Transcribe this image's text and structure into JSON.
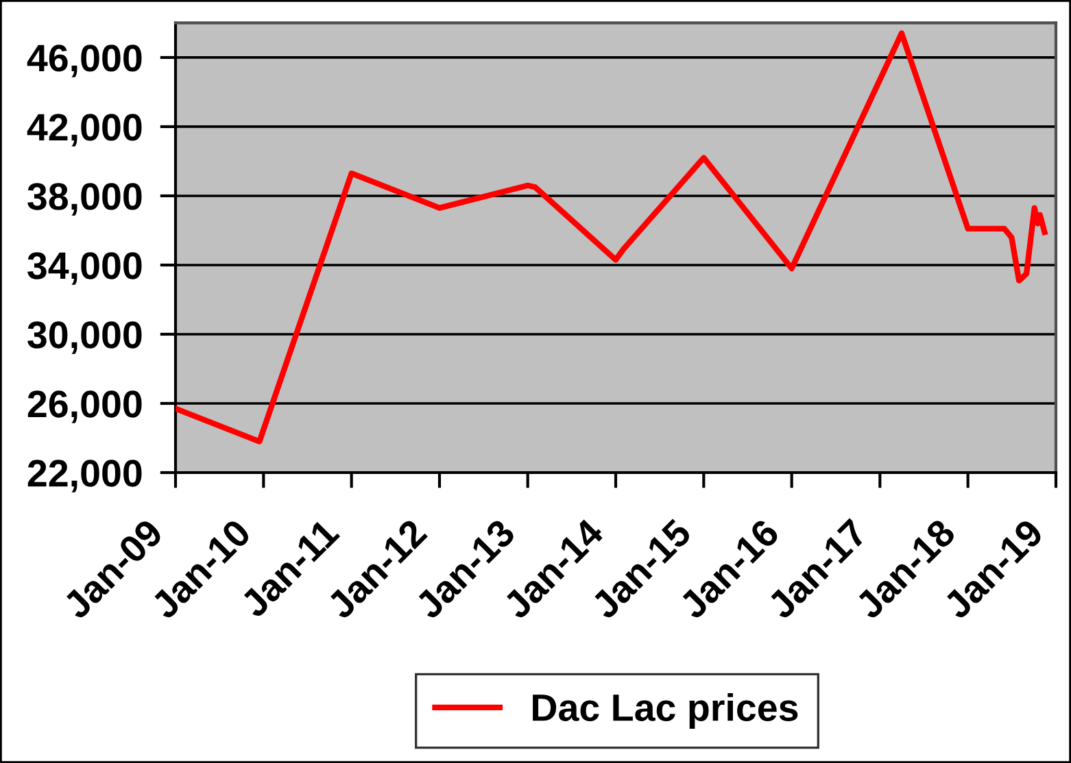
{
  "chart_data": {
    "type": "line",
    "x": [
      "2009-01",
      "2009-12-15",
      "2011-01",
      "2012-01",
      "2013-01",
      "2013-02",
      "2014-01",
      "2014-02",
      "2015-01",
      "2016-01",
      "2017-04",
      "2018-01",
      "2018-06",
      "2018-07",
      "2018-08",
      "2018-09",
      "2018-10-04",
      "2018-10-18",
      "2018-10-27",
      "2018-11-15"
    ],
    "series": [
      {
        "name": "Dac Lac prices",
        "color": "#ff0000",
        "values": [
          25700,
          23800,
          39300,
          37300,
          38600,
          38500,
          34300,
          34900,
          40200,
          33800,
          47400,
          36100,
          36100,
          35600,
          33100,
          33500,
          37300,
          36400,
          36900,
          35900
        ]
      }
    ],
    "xlim": [
      "2009-01",
      "2019-01"
    ],
    "xticks": [
      {
        "value": "2009-01",
        "label": "Jan-09"
      },
      {
        "value": "2010-01",
        "label": "Jan-10"
      },
      {
        "value": "2011-01",
        "label": "Jan-11"
      },
      {
        "value": "2012-01",
        "label": "Jan-12"
      },
      {
        "value": "2013-01",
        "label": "Jan-13"
      },
      {
        "value": "2014-01",
        "label": "Jan-14"
      },
      {
        "value": "2015-01",
        "label": "Jan-15"
      },
      {
        "value": "2016-01",
        "label": "Jan-16"
      },
      {
        "value": "2017-01",
        "label": "Jan-17"
      },
      {
        "value": "2018-01",
        "label": "Jan-18"
      },
      {
        "value": "2019-01",
        "label": "Jan-19"
      }
    ],
    "ylim": [
      22000,
      48000
    ],
    "yticks": [
      {
        "value": 22000,
        "label": "22,000"
      },
      {
        "value": 26000,
        "label": "26,000"
      },
      {
        "value": 30000,
        "label": "30,000"
      },
      {
        "value": 34000,
        "label": "34,000"
      },
      {
        "value": 38000,
        "label": "38,000"
      },
      {
        "value": 42000,
        "label": "42,000"
      },
      {
        "value": 46000,
        "label": "46,000"
      }
    ],
    "grid": "y",
    "legend": "bottom",
    "line_style": "solid"
  }
}
